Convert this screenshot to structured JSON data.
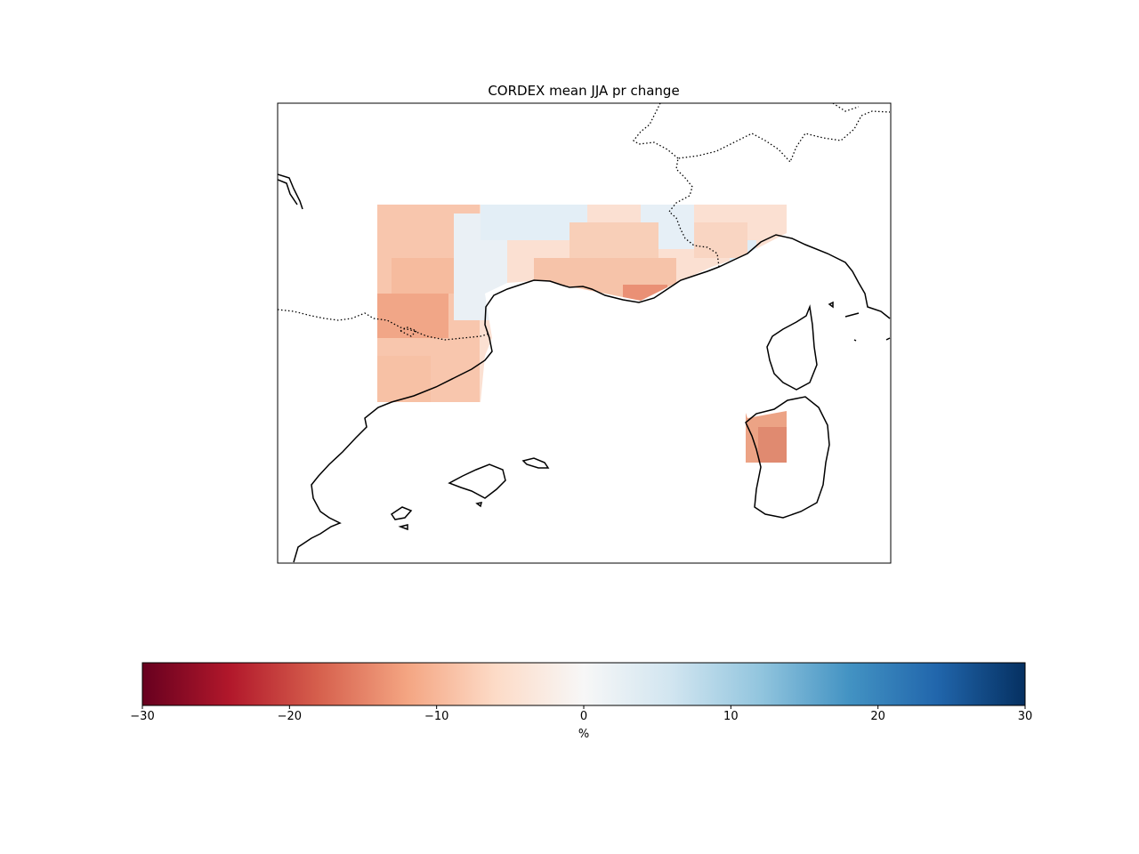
{
  "title": "CORDEX mean JJA pr change",
  "colorbar": {
    "label": "%",
    "ticks": [
      "−30",
      "−20",
      "−10",
      "0",
      "10",
      "20",
      "30"
    ],
    "tick_values": [
      -30,
      -20,
      -10,
      0,
      10,
      20,
      30
    ],
    "range": [
      -30,
      30
    ],
    "colormap": "RdBu",
    "colors": [
      "#67001f",
      "#b2182b",
      "#d6604d",
      "#f4a582",
      "#fddbc7",
      "#f7f7f7",
      "#d1e5f0",
      "#92c5de",
      "#4393c3",
      "#2166ac",
      "#053061"
    ]
  }
}
